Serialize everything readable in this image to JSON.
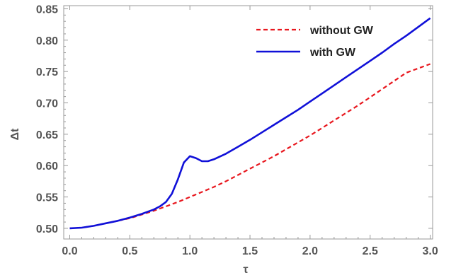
{
  "chart_data": {
    "type": "line",
    "xlabel": "τ",
    "ylabel": "Δt",
    "xlim": [
      -0.05,
      3.02
    ],
    "ylim": [
      0.483,
      0.855
    ],
    "x_ticks": [
      {
        "value": 0.0,
        "label": "0.0"
      },
      {
        "value": 0.5,
        "label": "0.5"
      },
      {
        "value": 1.0,
        "label": "1.0"
      },
      {
        "value": 1.5,
        "label": "1.5"
      },
      {
        "value": 2.0,
        "label": "2.0"
      },
      {
        "value": 2.5,
        "label": "2.5"
      },
      {
        "value": 3.0,
        "label": "3.0"
      }
    ],
    "y_ticks": [
      {
        "value": 0.5,
        "label": "0.50"
      },
      {
        "value": 0.55,
        "label": "0.55"
      },
      {
        "value": 0.6,
        "label": "0.60"
      },
      {
        "value": 0.65,
        "label": "0.65"
      },
      {
        "value": 0.7,
        "label": "0.70"
      },
      {
        "value": 0.75,
        "label": "0.75"
      },
      {
        "value": 0.8,
        "label": "0.80"
      },
      {
        "value": 0.85,
        "label": "0.85"
      }
    ],
    "legend_position": "top-right",
    "grid": false,
    "series": [
      {
        "name": "without GW",
        "color": "#e8171e",
        "style": "dashed",
        "x": [
          0.0,
          0.1,
          0.2,
          0.3,
          0.4,
          0.5,
          0.6,
          0.7,
          0.8,
          0.9,
          1.0,
          1.1,
          1.2,
          1.3,
          1.4,
          1.5,
          1.6,
          1.7,
          1.8,
          1.9,
          2.0,
          2.1,
          2.2,
          2.3,
          2.4,
          2.5,
          2.6,
          2.7,
          2.8,
          2.9,
          3.0
        ],
        "y": [
          0.5,
          0.501,
          0.504,
          0.508,
          0.512,
          0.516,
          0.522,
          0.528,
          0.535,
          0.542,
          0.55,
          0.558,
          0.566,
          0.575,
          0.585,
          0.595,
          0.605,
          0.615,
          0.626,
          0.637,
          0.648,
          0.66,
          0.672,
          0.684,
          0.696,
          0.709,
          0.722,
          0.735,
          0.748,
          0.755,
          0.762
        ]
      },
      {
        "name": "with GW",
        "color": "#1010d8",
        "style": "solid",
        "x": [
          0.0,
          0.1,
          0.2,
          0.3,
          0.4,
          0.5,
          0.6,
          0.7,
          0.75,
          0.8,
          0.85,
          0.9,
          0.95,
          1.0,
          1.05,
          1.1,
          1.15,
          1.2,
          1.3,
          1.4,
          1.5,
          1.6,
          1.7,
          1.8,
          1.9,
          2.0,
          2.1,
          2.2,
          2.3,
          2.4,
          2.5,
          2.6,
          2.7,
          2.8,
          2.9,
          3.0
        ],
        "y": [
          0.5,
          0.501,
          0.504,
          0.508,
          0.512,
          0.517,
          0.523,
          0.53,
          0.535,
          0.542,
          0.555,
          0.578,
          0.605,
          0.615,
          0.612,
          0.607,
          0.607,
          0.61,
          0.619,
          0.63,
          0.641,
          0.653,
          0.665,
          0.677,
          0.689,
          0.702,
          0.715,
          0.728,
          0.741,
          0.754,
          0.767,
          0.78,
          0.794,
          0.807,
          0.821,
          0.835
        ]
      }
    ]
  }
}
